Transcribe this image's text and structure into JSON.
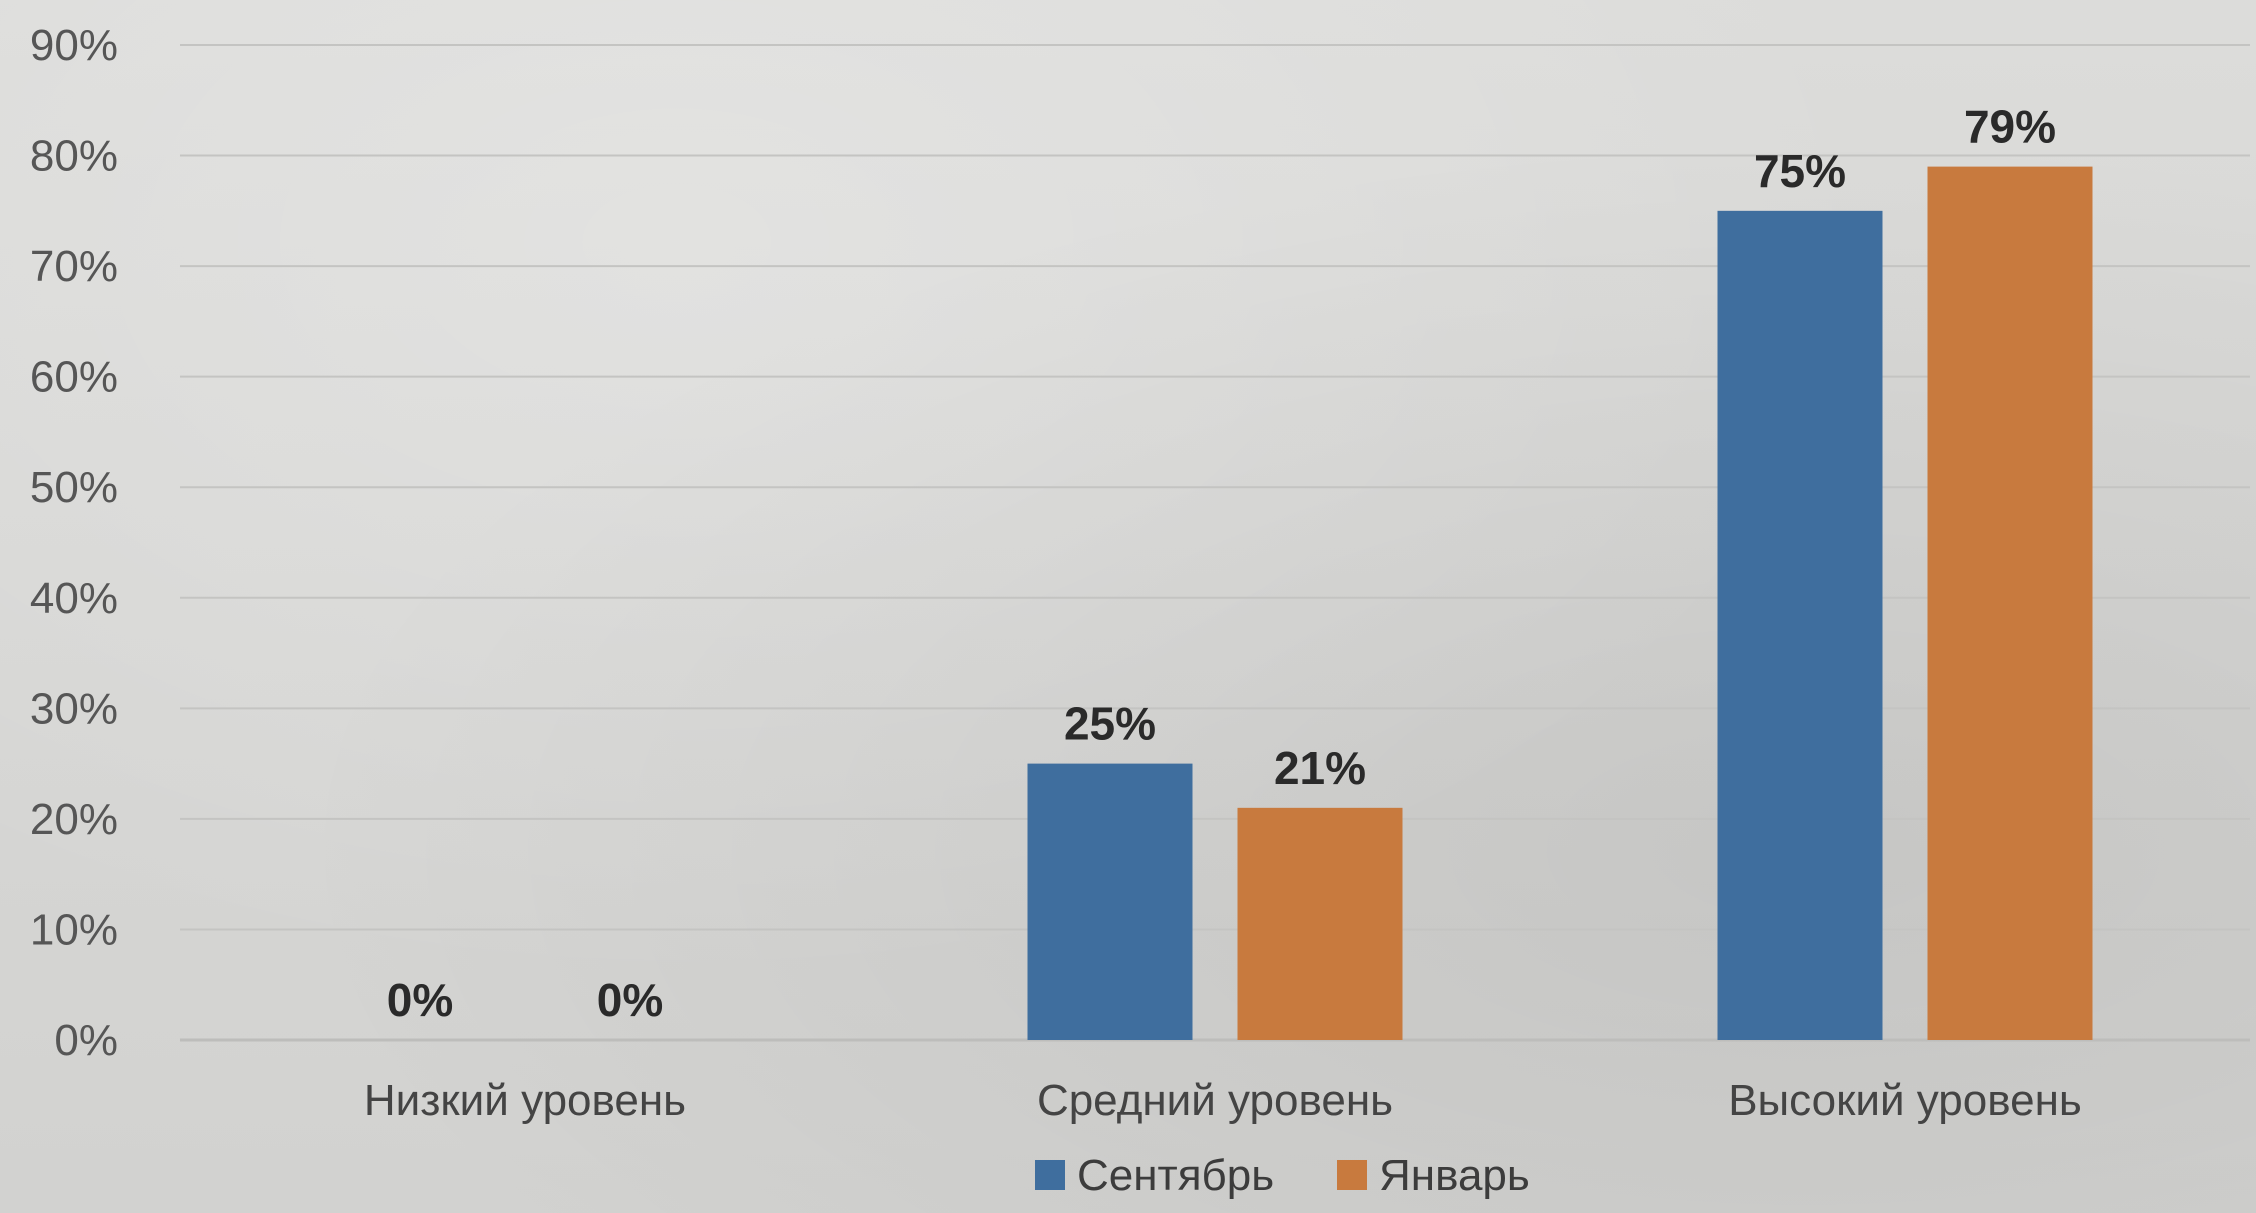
{
  "chart_data": {
    "type": "bar",
    "categories": [
      "Низкий уровень",
      "Средний уровень",
      "Высокий уровень"
    ],
    "series": [
      {
        "name": "Сентябрь",
        "values": [
          0,
          25,
          75
        ],
        "labels": [
          "0%",
          "25%",
          "75%"
        ],
        "color": "#3f6e9e"
      },
      {
        "name": "Январь",
        "values": [
          0,
          21,
          79
        ],
        "labels": [
          "0%",
          "21%",
          "79%"
        ],
        "color": "#c87a3e"
      }
    ],
    "y_ticks": [
      "0%",
      "10%",
      "20%",
      "30%",
      "40%",
      "50%",
      "60%",
      "70%",
      "80%",
      "90%"
    ],
    "ylim": [
      0,
      90
    ],
    "y_unit": "%",
    "grid": true,
    "legend_position": "bottom"
  }
}
